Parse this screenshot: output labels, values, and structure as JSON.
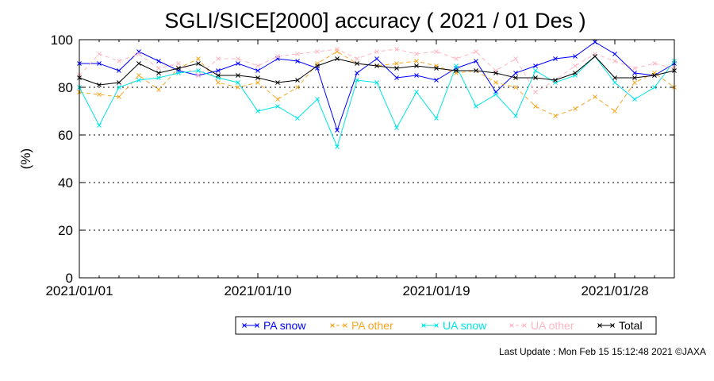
{
  "chart_data": {
    "type": "line",
    "title": "SGLI/SICE[2000] accuracy ( 2021 / 01 Des )",
    "ylabel": "(%)",
    "xlabel": "",
    "ylim": [
      0,
      100
    ],
    "yticks": [
      0,
      20,
      40,
      60,
      80,
      100
    ],
    "grid": "horizontal dotted",
    "x": [
      "2021/01/01",
      "2021/01/02",
      "2021/01/03",
      "2021/01/04",
      "2021/01/05",
      "2021/01/06",
      "2021/01/07",
      "2021/01/08",
      "2021/01/09",
      "2021/01/10",
      "2021/01/11",
      "2021/01/12",
      "2021/01/13",
      "2021/01/14",
      "2021/01/15",
      "2021/01/16",
      "2021/01/17",
      "2021/01/18",
      "2021/01/19",
      "2021/01/20",
      "2021/01/21",
      "2021/01/22",
      "2021/01/23",
      "2021/01/24",
      "2021/01/25",
      "2021/01/26",
      "2021/01/27",
      "2021/01/28",
      "2021/01/29",
      "2021/01/30",
      "2021/01/31"
    ],
    "xticks": [
      "2021/01/01",
      "2021/01/10",
      "2021/01/19",
      "2021/01/28"
    ],
    "series": [
      {
        "name": "PA snow",
        "color": "#0000ff",
        "dash": "solid",
        "values": [
          90,
          90,
          87,
          95,
          91,
          87,
          85,
          87,
          90,
          87,
          92,
          91,
          88,
          62,
          86,
          92,
          84,
          85,
          83,
          88,
          91,
          78,
          86,
          89,
          92,
          93,
          99,
          94,
          86,
          85,
          90
        ]
      },
      {
        "name": "PA other",
        "color": "#f5a623",
        "dash": "dashed",
        "values": [
          78,
          77,
          76,
          85,
          79,
          88,
          92,
          82,
          80,
          82,
          75,
          80,
          90,
          95,
          90,
          89,
          90,
          91,
          89,
          86,
          87,
          82,
          80,
          72,
          68,
          71,
          76,
          70,
          82,
          86,
          80
        ]
      },
      {
        "name": "UA snow",
        "color": "#00e5e5",
        "dash": "solid",
        "values": [
          80,
          64,
          80,
          83,
          84,
          86,
          87,
          84,
          82,
          70,
          72,
          67,
          75,
          55,
          83,
          82,
          63,
          78,
          67,
          89,
          72,
          77,
          68,
          87,
          82,
          85,
          93,
          82,
          75,
          80,
          91
        ]
      },
      {
        "name": "UA other",
        "color": "#ffb6c1",
        "dash": "dashed",
        "values": [
          85,
          94,
          91,
          94,
          88,
          90,
          85,
          92,
          92,
          89,
          93,
          94,
          95,
          96,
          92,
          95,
          96,
          94,
          95,
          92,
          95,
          87,
          92,
          78,
          83,
          89,
          94,
          91,
          88,
          90,
          88
        ]
      },
      {
        "name": "Total",
        "color": "#000000",
        "dash": "solid",
        "values": [
          84,
          81,
          82,
          90,
          86,
          88,
          90,
          85,
          85,
          84,
          82,
          83,
          89,
          92,
          90,
          89,
          88,
          89,
          88,
          87,
          87,
          86,
          84,
          84,
          83,
          86,
          93,
          84,
          84,
          85,
          87
        ]
      }
    ]
  },
  "footer": "Last Update : Mon Feb 15 15:12:48 2021  ©JAXA"
}
